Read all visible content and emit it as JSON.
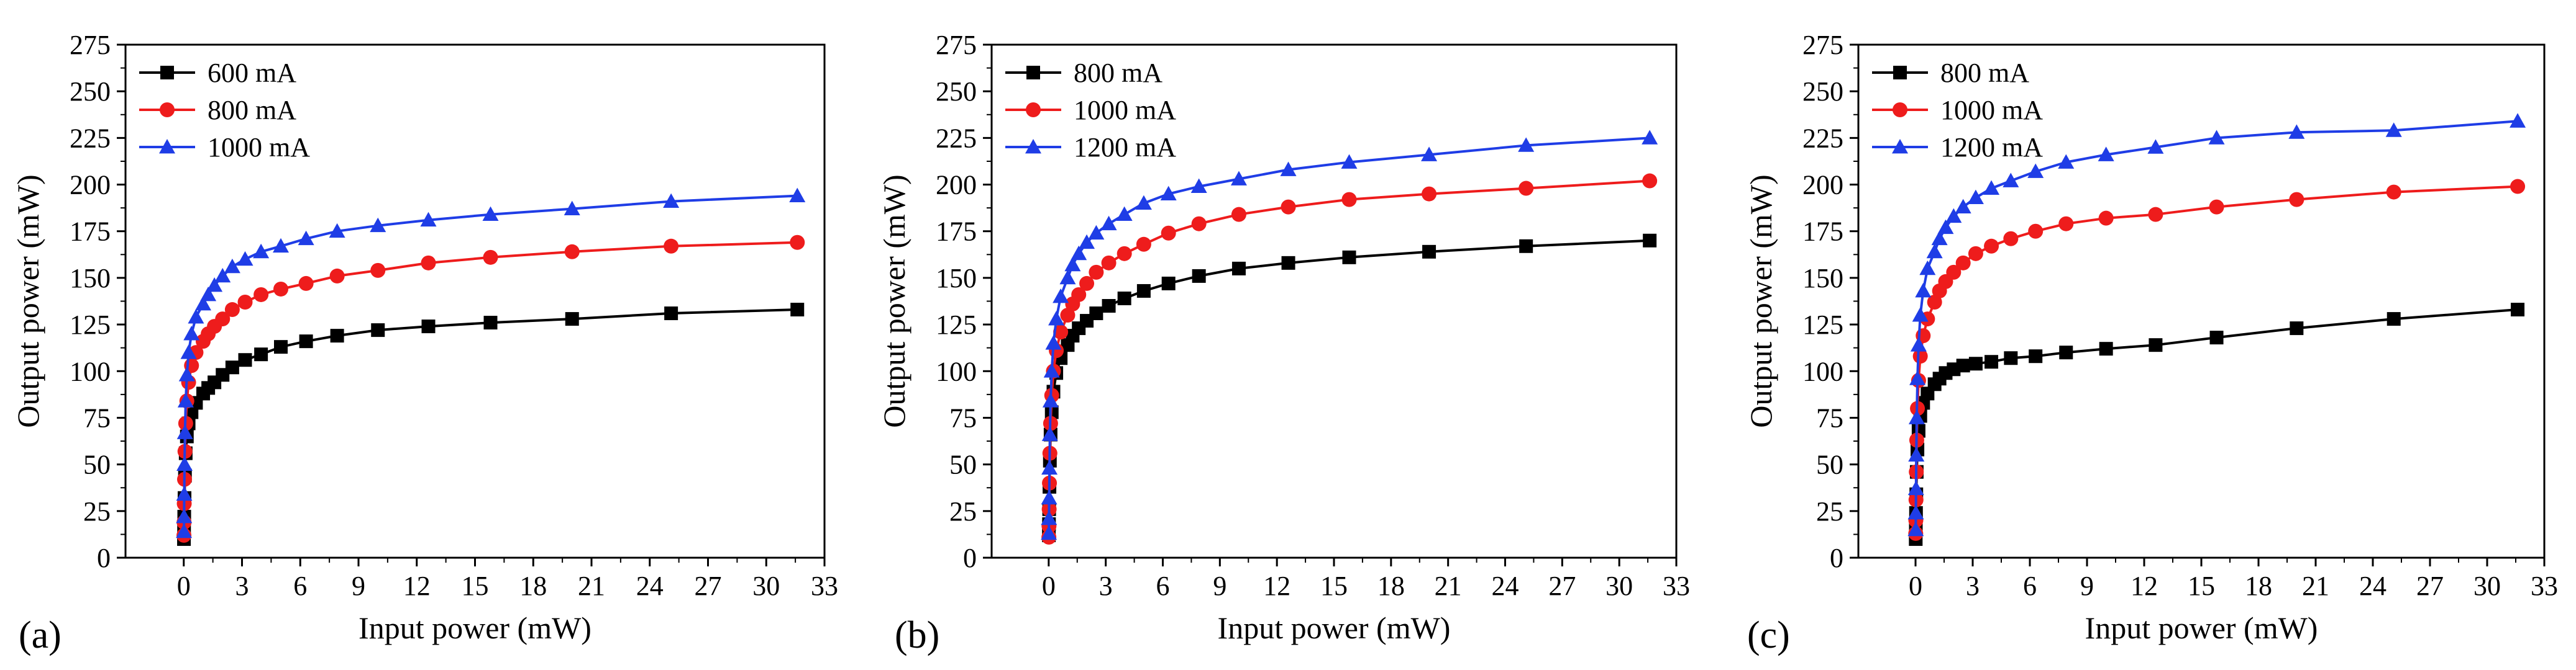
{
  "figure": {
    "panel_labels": [
      "(a)",
      "(b)",
      "(c)"
    ]
  },
  "chart_data": [
    {
      "type": "line",
      "panel": "(a)",
      "xlabel": "Input power (mW)",
      "ylabel": "Output power (mW)",
      "xlim": [
        -3,
        33
      ],
      "ylim": [
        0,
        275
      ],
      "xticks": [
        0,
        3,
        6,
        9,
        12,
        15,
        18,
        21,
        24,
        27,
        30,
        33
      ],
      "yticks": [
        0,
        25,
        50,
        75,
        100,
        125,
        150,
        175,
        200,
        225,
        250,
        275
      ],
      "grid": false,
      "legend_position": "top-left",
      "x": [
        0.01,
        0.016,
        0.025,
        0.04,
        0.063,
        0.1,
        0.16,
        0.25,
        0.4,
        0.63,
        1.0,
        1.26,
        1.58,
        2.0,
        2.5,
        3.16,
        3.98,
        5.0,
        6.3,
        7.9,
        10.0,
        12.6,
        15.8,
        20.0,
        25.1,
        31.6
      ],
      "series": [
        {
          "name": "600 mA",
          "color": "#000000",
          "marker": "square",
          "values": [
            10,
            15,
            22,
            32,
            44,
            56,
            65,
            72,
            78,
            83,
            88,
            91,
            94,
            98,
            102,
            106,
            109,
            113,
            116,
            119,
            122,
            124,
            126,
            128,
            131,
            133
          ]
        },
        {
          "name": "800 mA",
          "color": "#ee1c1c",
          "marker": "circle",
          "values": [
            12,
            19,
            29,
            42,
            57,
            72,
            84,
            94,
            103,
            110,
            116,
            120,
            124,
            128,
            133,
            137,
            141,
            144,
            147,
            151,
            154,
            158,
            161,
            164,
            167,
            169
          ]
        },
        {
          "name": "1000 mA",
          "color": "#1f3de6",
          "marker": "triangle",
          "values": [
            14,
            22,
            34,
            50,
            67,
            84,
            98,
            110,
            120,
            129,
            136,
            141,
            146,
            151,
            156,
            160,
            164,
            167,
            171,
            175,
            178,
            181,
            184,
            187,
            191,
            194
          ]
        }
      ]
    },
    {
      "type": "line",
      "panel": "(b)",
      "xlabel": "Input power (mW)",
      "ylabel": "Output power (mW)",
      "xlim": [
        -3,
        33
      ],
      "ylim": [
        0,
        275
      ],
      "xticks": [
        0,
        3,
        6,
        9,
        12,
        15,
        18,
        21,
        24,
        27,
        30,
        33
      ],
      "yticks": [
        0,
        25,
        50,
        75,
        100,
        125,
        150,
        175,
        200,
        225,
        250,
        275
      ],
      "grid": false,
      "legend_position": "top-left",
      "x": [
        0.01,
        0.016,
        0.025,
        0.04,
        0.063,
        0.1,
        0.16,
        0.25,
        0.4,
        0.63,
        1.0,
        1.26,
        1.58,
        2.0,
        2.5,
        3.16,
        3.98,
        5.0,
        6.3,
        7.9,
        10.0,
        12.6,
        15.8,
        20.0,
        25.1,
        31.6
      ],
      "series": [
        {
          "name": "800 mA",
          "color": "#000000",
          "marker": "square",
          "values": [
            12,
            18,
            26,
            38,
            52,
            66,
            78,
            89,
            99,
            107,
            114,
            119,
            123,
            127,
            131,
            135,
            139,
            143,
            147,
            151,
            155,
            158,
            161,
            164,
            167,
            170
          ]
        },
        {
          "name": "1000 mA",
          "color": "#ee1c1c",
          "marker": "circle",
          "values": [
            11,
            17,
            26,
            40,
            56,
            72,
            87,
            100,
            111,
            121,
            130,
            136,
            141,
            147,
            153,
            158,
            163,
            168,
            174,
            179,
            184,
            188,
            192,
            195,
            198,
            202
          ]
        },
        {
          "name": "1200 mA",
          "color": "#1f3de6",
          "marker": "triangle",
          "values": [
            13,
            21,
            32,
            48,
            66,
            84,
            100,
            115,
            128,
            140,
            150,
            157,
            163,
            169,
            174,
            179,
            184,
            190,
            195,
            199,
            203,
            208,
            212,
            216,
            221,
            225
          ]
        }
      ]
    },
    {
      "type": "line",
      "panel": "(c)",
      "xlabel": "Input power (mW)",
      "ylabel": "Output power (mW)",
      "xlim": [
        -3,
        33
      ],
      "ylim": [
        0,
        275
      ],
      "xticks": [
        0,
        3,
        6,
        9,
        12,
        15,
        18,
        21,
        24,
        27,
        30,
        33
      ],
      "yticks": [
        0,
        25,
        50,
        75,
        100,
        125,
        150,
        175,
        200,
        225,
        250,
        275
      ],
      "grid": false,
      "legend_position": "top-left",
      "x": [
        0.01,
        0.016,
        0.025,
        0.04,
        0.063,
        0.1,
        0.16,
        0.25,
        0.4,
        0.63,
        1.0,
        1.26,
        1.58,
        2.0,
        2.5,
        3.16,
        3.98,
        5.0,
        6.3,
        7.9,
        10.0,
        12.6,
        15.8,
        20.0,
        25.1,
        31.6
      ],
      "series": [
        {
          "name": "800 mA",
          "color": "#000000",
          "marker": "square",
          "values": [
            10,
            16,
            24,
            34,
            46,
            58,
            68,
            76,
            83,
            88,
            93,
            96,
            99,
            101,
            103,
            104,
            105,
            107,
            108,
            110,
            112,
            114,
            118,
            123,
            128,
            133
          ]
        },
        {
          "name": "1000 mA",
          "color": "#ee1c1c",
          "marker": "circle",
          "values": [
            13,
            20,
            31,
            46,
            63,
            80,
            95,
            108,
            119,
            128,
            137,
            143,
            148,
            153,
            158,
            163,
            167,
            171,
            175,
            179,
            182,
            184,
            188,
            192,
            196,
            199
          ]
        },
        {
          "name": "1200 mA",
          "color": "#1f3de6",
          "marker": "triangle",
          "values": [
            15,
            24,
            37,
            55,
            75,
            96,
            114,
            130,
            143,
            155,
            164,
            171,
            177,
            183,
            188,
            193,
            198,
            202,
            207,
            212,
            216,
            220,
            225,
            228,
            229,
            234
          ]
        }
      ]
    }
  ]
}
